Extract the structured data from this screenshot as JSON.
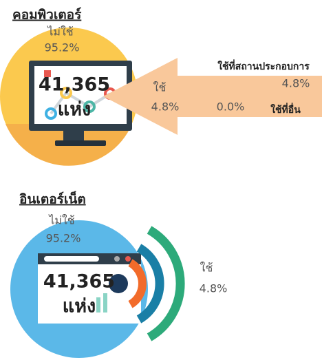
{
  "computer": {
    "title": "คอมพิวเตอร์",
    "not_use_label": "ไม่ใช้",
    "not_use_pct": "95.2%",
    "count": "41,365",
    "unit": "แห่ง",
    "use_label": "ใช้",
    "use_pct": "4.8%",
    "at_business_label": "ใช้ที่สถานประกอบการ",
    "at_business_pct": "4.8%",
    "elsewhere_label": "ใช้ที่อื่น",
    "elsewhere_pct": "0.0%"
  },
  "internet": {
    "title": "อินเตอร์เน็ต",
    "not_use_label": "ไม่ใช้",
    "not_use_pct": "95.2%",
    "count": "41,365",
    "unit": "แห่ง",
    "use_label": "ใช้",
    "use_pct": "4.8%"
  }
}
